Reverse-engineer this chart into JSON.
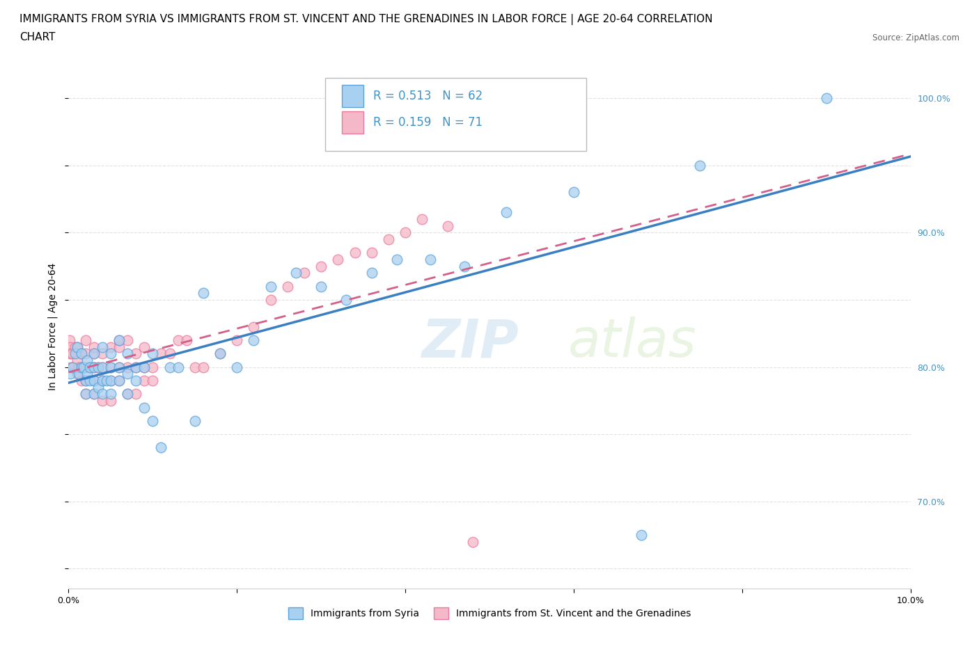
{
  "title_line1": "IMMIGRANTS FROM SYRIA VS IMMIGRANTS FROM ST. VINCENT AND THE GRENADINES IN LABOR FORCE | AGE 20-64 CORRELATION",
  "title_line2": "CHART",
  "source_text": "Source: ZipAtlas.com",
  "ylabel": "In Labor Force | Age 20-64",
  "watermark_zip": "ZIP",
  "watermark_atlas": "atlas",
  "xlim": [
    0.0,
    0.1
  ],
  "ylim": [
    0.635,
    1.025
  ],
  "color_syria": "#a8d0f0",
  "color_svg": "#f5b8c8",
  "color_syria_edge": "#5ba3d9",
  "color_svg_edge": "#e87a9f",
  "color_syria_line": "#3a7fc1",
  "color_svg_line": "#d45f8a",
  "legend_label1": "Immigrants from Syria",
  "legend_label2": "Immigrants from St. Vincent and the Grenadines",
  "syria_x": [
    0.0002,
    0.0005,
    0.0008,
    0.001,
    0.0012,
    0.0015,
    0.0015,
    0.0018,
    0.002,
    0.002,
    0.0022,
    0.0022,
    0.0025,
    0.0025,
    0.003,
    0.003,
    0.003,
    0.003,
    0.0035,
    0.0035,
    0.004,
    0.004,
    0.004,
    0.004,
    0.0045,
    0.005,
    0.005,
    0.005,
    0.005,
    0.006,
    0.006,
    0.006,
    0.007,
    0.007,
    0.007,
    0.008,
    0.008,
    0.009,
    0.009,
    0.01,
    0.01,
    0.011,
    0.012,
    0.013,
    0.015,
    0.016,
    0.018,
    0.02,
    0.022,
    0.024,
    0.027,
    0.03,
    0.033,
    0.036,
    0.039,
    0.043,
    0.047,
    0.052,
    0.06,
    0.068,
    0.075,
    0.09
  ],
  "syria_y": [
    0.795,
    0.8,
    0.81,
    0.815,
    0.795,
    0.8,
    0.81,
    0.8,
    0.78,
    0.79,
    0.795,
    0.805,
    0.79,
    0.8,
    0.78,
    0.79,
    0.8,
    0.81,
    0.785,
    0.8,
    0.78,
    0.79,
    0.8,
    0.815,
    0.79,
    0.78,
    0.79,
    0.8,
    0.81,
    0.79,
    0.8,
    0.82,
    0.78,
    0.795,
    0.81,
    0.79,
    0.8,
    0.77,
    0.8,
    0.76,
    0.81,
    0.74,
    0.8,
    0.8,
    0.76,
    0.855,
    0.81,
    0.8,
    0.82,
    0.86,
    0.87,
    0.86,
    0.85,
    0.87,
    0.88,
    0.88,
    0.875,
    0.915,
    0.93,
    0.675,
    0.95,
    1.0
  ],
  "svg_x": [
    0.0001,
    0.0001,
    0.0002,
    0.0002,
    0.0003,
    0.0005,
    0.0005,
    0.0008,
    0.001,
    0.001,
    0.001,
    0.0012,
    0.0015,
    0.0015,
    0.0015,
    0.002,
    0.002,
    0.002,
    0.002,
    0.002,
    0.0025,
    0.003,
    0.003,
    0.003,
    0.003,
    0.003,
    0.0035,
    0.004,
    0.004,
    0.004,
    0.004,
    0.005,
    0.005,
    0.005,
    0.005,
    0.006,
    0.006,
    0.006,
    0.006,
    0.007,
    0.007,
    0.007,
    0.008,
    0.008,
    0.008,
    0.009,
    0.009,
    0.009,
    0.01,
    0.01,
    0.011,
    0.012,
    0.013,
    0.014,
    0.015,
    0.016,
    0.018,
    0.02,
    0.022,
    0.024,
    0.026,
    0.028,
    0.03,
    0.032,
    0.034,
    0.036,
    0.038,
    0.04,
    0.042,
    0.045,
    0.048
  ],
  "svg_y": [
    0.81,
    0.82,
    0.8,
    0.815,
    0.81,
    0.8,
    0.81,
    0.815,
    0.795,
    0.805,
    0.815,
    0.8,
    0.79,
    0.8,
    0.81,
    0.78,
    0.79,
    0.8,
    0.81,
    0.82,
    0.8,
    0.78,
    0.79,
    0.8,
    0.81,
    0.815,
    0.8,
    0.775,
    0.79,
    0.8,
    0.81,
    0.775,
    0.79,
    0.8,
    0.815,
    0.79,
    0.8,
    0.815,
    0.82,
    0.78,
    0.8,
    0.82,
    0.78,
    0.8,
    0.81,
    0.79,
    0.8,
    0.815,
    0.79,
    0.8,
    0.81,
    0.81,
    0.82,
    0.82,
    0.8,
    0.8,
    0.81,
    0.82,
    0.83,
    0.85,
    0.86,
    0.87,
    0.875,
    0.88,
    0.885,
    0.885,
    0.895,
    0.9,
    0.91,
    0.905,
    0.67
  ],
  "background_color": "#ffffff",
  "grid_color": "#e0e0e0",
  "right_ytick_color": "#4292c6",
  "title_fontsize": 11,
  "axis_label_fontsize": 10,
  "tick_fontsize": 9
}
